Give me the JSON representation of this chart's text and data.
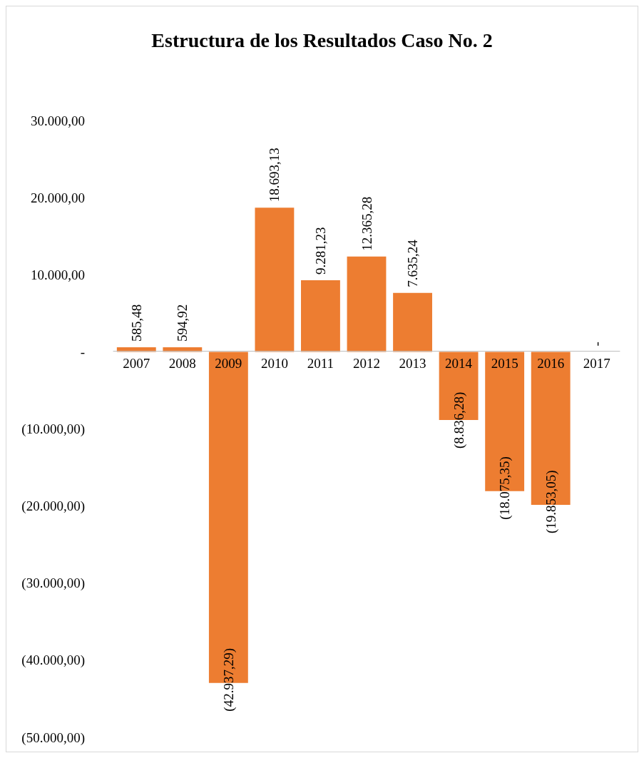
{
  "chart_data": {
    "type": "bar",
    "title": "Estructura de los Resultados Caso No. 2",
    "categories": [
      "2007",
      "2008",
      "2009",
      "2010",
      "2011",
      "2012",
      "2013",
      "2014",
      "2015",
      "2016",
      "2017"
    ],
    "values": [
      585.48,
      594.92,
      -42937.29,
      18693.13,
      9281.23,
      12365.28,
      7635.24,
      -8836.28,
      -18075.35,
      -19853.05,
      0
    ],
    "value_labels": [
      "585,48",
      "594,92",
      "(42.937,29)",
      "18.693,13",
      "9.281,23",
      "12.365,28",
      "7.635,24",
      "(8.836,28)",
      "(18.075,35)",
      "(19.853,05)",
      "-"
    ],
    "color": "#ed7d31",
    "ylim": [
      -50000,
      30000
    ],
    "yticks": [
      {
        "value": -50000,
        "label": "(50.000,00)"
      },
      {
        "value": -40000,
        "label": "(40.000,00)"
      },
      {
        "value": -30000,
        "label": "(30.000,00)"
      },
      {
        "value": -20000,
        "label": "(20.000,00)"
      },
      {
        "value": -10000,
        "label": "(10.000,00)"
      },
      {
        "value": 0,
        "label": "-"
      },
      {
        "value": 10000,
        "label": "10.000,00"
      },
      {
        "value": 20000,
        "label": "20.000,00"
      },
      {
        "value": 30000,
        "label": "30.000,00"
      }
    ],
    "grid": false
  }
}
